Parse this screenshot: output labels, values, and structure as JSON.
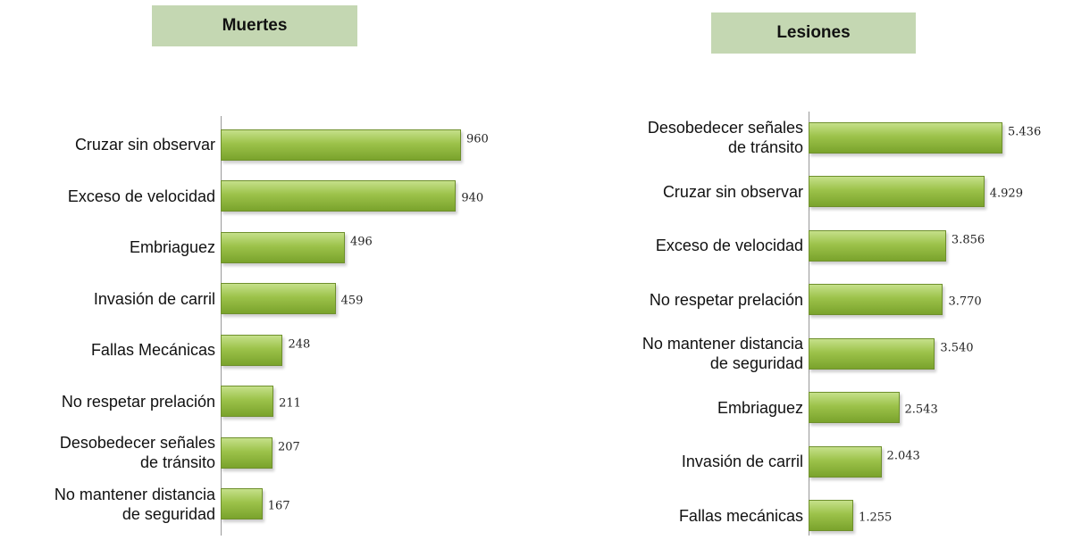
{
  "chart_data": [
    {
      "type": "bar",
      "orientation": "horizontal",
      "title": "Muertes",
      "categories": [
        "Cruzar sin observar",
        "Exceso de velocidad",
        "Embriaguez",
        "Invasión de carril",
        "Fallas Mecánicas",
        "No respetar prelación",
        "Desobedecer señales\nde tránsito",
        "No mantener distancia\nde seguridad"
      ],
      "values": [
        960,
        940,
        496,
        459,
        248,
        211,
        207,
        167
      ],
      "color": "#9bbb59"
    },
    {
      "type": "bar",
      "orientation": "horizontal",
      "title": "Lesiones",
      "categories": [
        "Desobedecer señales\nde tránsito",
        "Cruzar sin observar",
        "Exceso de velocidad",
        "No respetar prelación",
        "No mantener distancia\nde seguridad",
        "Embriaguez",
        "Invasión de carril",
        "Fallas mecánicas"
      ],
      "values": [
        5436,
        4929,
        3856,
        3770,
        3540,
        2543,
        2043,
        1255
      ],
      "value_labels": [
        "5.436",
        "4.929",
        "3.856",
        "3.770",
        "3.540",
        "2.543",
        "2.043",
        "1.255"
      ],
      "color": "#9bbb59"
    }
  ]
}
